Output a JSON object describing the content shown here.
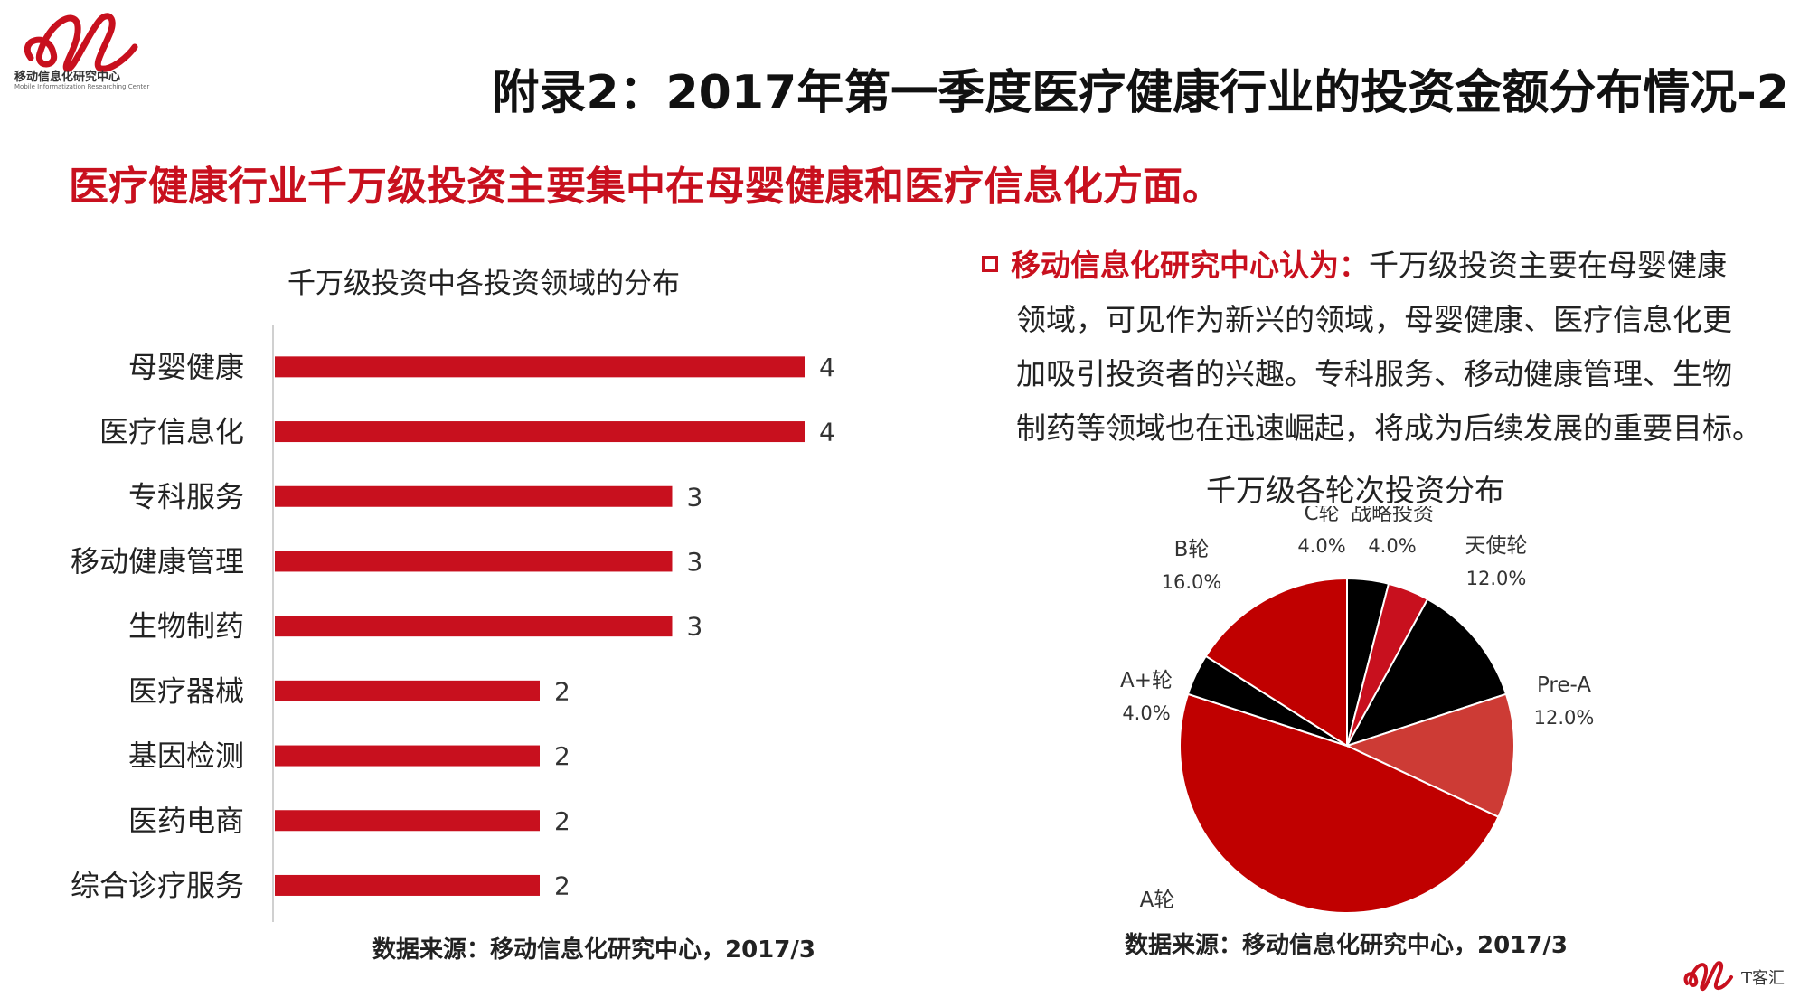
{
  "brand": {
    "name": "移动信息化研究中心",
    "subtitle": "Mobile Informatization Researching Center",
    "corner_text": "T客汇",
    "color": "#c8101e"
  },
  "page_title": "附录2：2017年第一季度医疗健康行业的投资金额分布情况-2",
  "headline": "医疗健康行业千万级投资主要集中在母婴健康和医疗信息化方面。",
  "insight": {
    "lead": "移动信息化研究中心认为：",
    "lines": [
      "千万级投资主要在母婴健康",
      "领域，可见作为新兴的领域，母婴健康、医疗信息化更",
      "加吸引投资者的兴趣。专科服务、移动健康管理、生物",
      "制药等领域也在迅速崛起，将成为后续发展的重要目标。"
    ]
  },
  "source_left": "数据来源：移动信息化研究中心，2017/3",
  "source_right": "数据来源：移动信息化研究中心，2017/3",
  "chart_data": [
    {
      "type": "bar",
      "orientation": "horizontal",
      "title": "千万级投资中各投资领域的分布",
      "categories": [
        "母婴健康",
        "医疗信息化",
        "专科服务",
        "移动健康管理",
        "生物制药",
        "医疗器械",
        "基因检测",
        "医药电商",
        "综合诊疗服务"
      ],
      "values": [
        4,
        4,
        3,
        3,
        3,
        2,
        2,
        2,
        2
      ],
      "xlim": [
        0,
        4
      ],
      "grid": false,
      "bar_color": "#c8101e"
    },
    {
      "type": "pie",
      "title": "千万级各轮次投资分布",
      "slices": [
        {
          "label": "C轮",
          "value": 4.0,
          "display": "4.0%",
          "color": "#000000"
        },
        {
          "label": "战略投资",
          "value": 4.0,
          "display": "4.0%",
          "color": "#c8101e"
        },
        {
          "label": "天使轮",
          "value": 12.0,
          "display": "12.0%",
          "color": "#000000"
        },
        {
          "label": "Pre-A",
          "value": 12.0,
          "display": "12.0%",
          "color": "#cd3b35"
        },
        {
          "label": "A轮",
          "value": 48.0,
          "display": "48.0%",
          "color": "#c00000"
        },
        {
          "label": "A+轮",
          "value": 4.0,
          "display": "4.0%",
          "color": "#000000"
        },
        {
          "label": "B轮",
          "value": 16.0,
          "display": "16.0%",
          "color": "#c00000"
        }
      ]
    }
  ]
}
